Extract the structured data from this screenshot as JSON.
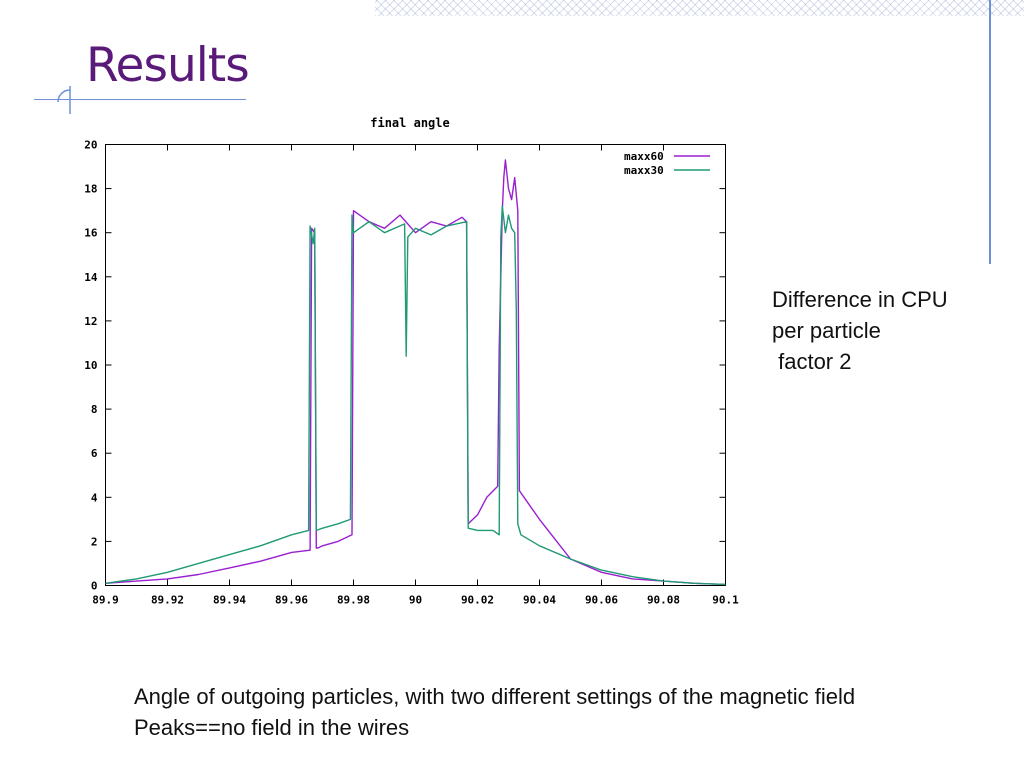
{
  "slide": {
    "title": "Results",
    "side_text": [
      "Difference in CPU",
      "per particle",
      " factor 2"
    ],
    "caption": [
      "Angle of outgoing particles, with two different settings of the magnetic field",
      "Peaks==no field in the wires"
    ]
  },
  "chart_data": {
    "type": "line",
    "title": "final angle",
    "xlabel": "",
    "ylabel": "",
    "xlim": [
      89.9,
      90.1
    ],
    "ylim": [
      0,
      20
    ],
    "xticks": [
      89.9,
      89.92,
      89.94,
      89.96,
      89.98,
      90,
      90.02,
      90.04,
      90.06,
      90.08,
      90.1
    ],
    "xtick_labels": [
      "89.9",
      "89.92",
      "89.94",
      "89.96",
      "89.98",
      "90",
      "90.02",
      "90.04",
      "90.06",
      "90.08",
      "90.1"
    ],
    "yticks": [
      0,
      2,
      4,
      6,
      8,
      10,
      12,
      14,
      16,
      18,
      20
    ],
    "ytick_labels": [
      "0",
      "2",
      "4",
      "6",
      "8",
      "10",
      "12",
      "14",
      "16",
      "18",
      "20"
    ],
    "grid": false,
    "legend_position": "top-right",
    "colors": {
      "maxx60": "#9a1fd0",
      "maxx30": "#1f9a75"
    },
    "series": [
      {
        "name": "maxx60",
        "x": [
          89.9,
          89.91,
          89.92,
          89.93,
          89.94,
          89.95,
          89.96,
          89.966,
          89.9665,
          89.9675,
          89.968,
          89.9685,
          89.97,
          89.975,
          89.9795,
          89.98,
          89.985,
          89.99,
          89.995,
          90,
          90.005,
          90.01,
          90.015,
          90.0165,
          90.017,
          90.02,
          90.023,
          90.0265,
          90.027,
          90.028,
          90.0285,
          90.029,
          90.03,
          90.031,
          90.032,
          90.033,
          90.0335,
          90.034,
          90.036,
          90.04,
          90.045,
          90.05,
          90.06,
          90.07,
          90.08,
          90.09,
          90.1
        ],
        "y": [
          0.1,
          0.2,
          0.3,
          0.5,
          0.8,
          1.1,
          1.5,
          1.6,
          16.2,
          16.0,
          1.7,
          1.7,
          1.8,
          2.0,
          2.3,
          17.0,
          16.5,
          16.2,
          16.8,
          16.0,
          16.5,
          16.3,
          16.7,
          16.5,
          2.8,
          3.2,
          4.0,
          4.5,
          10.8,
          17.0,
          18.5,
          19.3,
          18.0,
          17.5,
          18.5,
          17.0,
          4.3,
          4.2,
          3.8,
          3.0,
          2.1,
          1.2,
          0.6,
          0.3,
          0.2,
          0.1,
          0.05
        ]
      },
      {
        "name": "maxx30",
        "x": [
          89.9,
          89.91,
          89.92,
          89.93,
          89.94,
          89.95,
          89.96,
          89.9655,
          89.966,
          89.967,
          89.9675,
          89.968,
          89.97,
          89.975,
          89.979,
          89.9795,
          89.98,
          89.985,
          89.99,
          89.9965,
          89.997,
          89.9975,
          90,
          90.005,
          90.01,
          90.0165,
          90.017,
          90.02,
          90.025,
          90.027,
          90.0275,
          90.028,
          90.029,
          90.03,
          90.031,
          90.032,
          90.0325,
          90.033,
          90.034,
          90.04,
          90.05,
          90.06,
          90.07,
          90.08,
          90.09,
          90.1
        ],
        "y": [
          0.1,
          0.3,
          0.6,
          1.0,
          1.4,
          1.8,
          2.3,
          2.5,
          16.3,
          15.5,
          16.2,
          2.5,
          2.6,
          2.8,
          3.0,
          16.8,
          16.0,
          16.5,
          16.0,
          16.4,
          10.4,
          15.8,
          16.2,
          15.9,
          16.3,
          16.5,
          2.6,
          2.5,
          2.5,
          2.3,
          15.8,
          17.2,
          16.0,
          16.8,
          16.2,
          16.0,
          12.5,
          2.8,
          2.3,
          1.8,
          1.2,
          0.7,
          0.4,
          0.2,
          0.1,
          0.05
        ]
      }
    ]
  }
}
